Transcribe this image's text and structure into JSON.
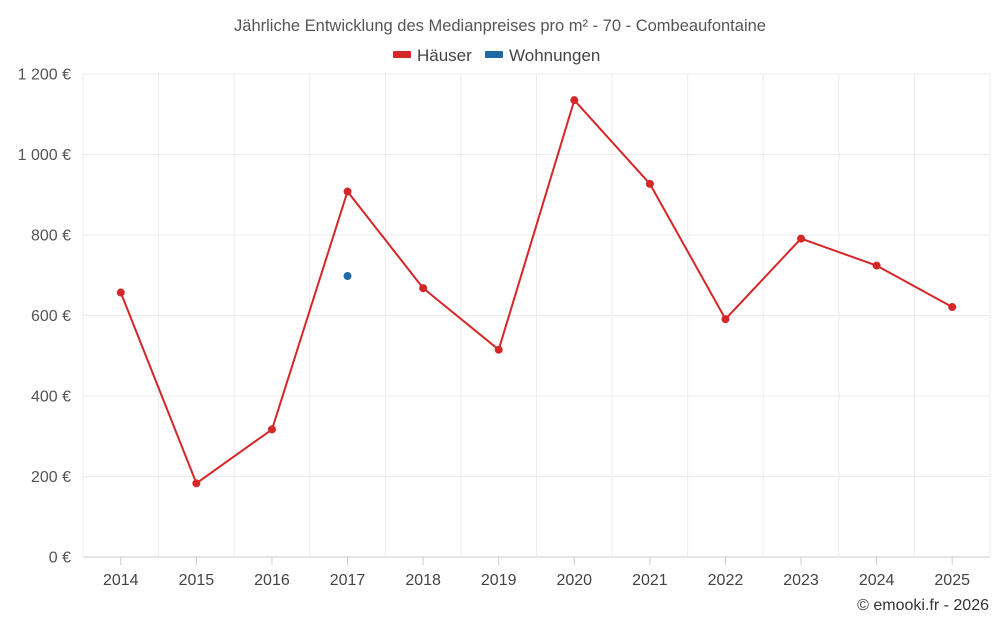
{
  "chart_data": {
    "type": "line",
    "title": "Jährliche Entwicklung des Medianpreises pro m² - 70 - Combeaufontaine",
    "categories": [
      "2014",
      "2015",
      "2016",
      "2017",
      "2018",
      "2019",
      "2020",
      "2021",
      "2022",
      "2023",
      "2024",
      "2025"
    ],
    "series": [
      {
        "name": "Häuser",
        "color": "#d62728",
        "values": [
          657,
          183,
          317,
          908,
          668,
          515,
          1135,
          927,
          591,
          791,
          724,
          621
        ]
      },
      {
        "name": "Wohnungen",
        "color": "#1f6aa5",
        "values": [
          null,
          null,
          null,
          698,
          null,
          null,
          null,
          null,
          null,
          null,
          null,
          null
        ]
      }
    ],
    "y_ticks": [
      "0 €",
      "200 €",
      "400 €",
      "600 €",
      "800 €",
      "1 000 €",
      "1 200 €"
    ],
    "ylim": [
      0,
      1200
    ],
    "y_step": 200,
    "grid": true,
    "legend_position": "top-center",
    "xlabel": "",
    "ylabel": ""
  },
  "credit": "© emooki.fr - 2026"
}
